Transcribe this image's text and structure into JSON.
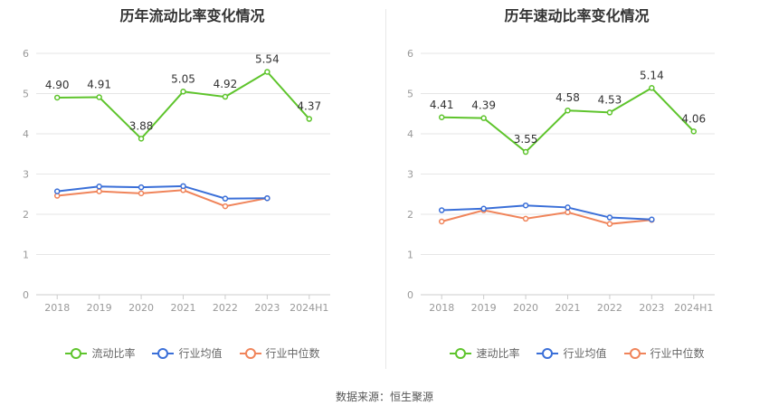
{
  "source_note": "数据来源：恒生聚源",
  "colors": {
    "main": "#5ec42c",
    "avg": "#3a6fd8",
    "median": "#f0845a",
    "grid": "#e6e6e6",
    "axis": "#999999",
    "label": "#333333"
  },
  "chart_data": [
    {
      "type": "line",
      "title": "历年流动比率变化情况",
      "categories": [
        "2018",
        "2019",
        "2020",
        "2021",
        "2022",
        "2023",
        "2024H1"
      ],
      "ylim": [
        0,
        6
      ],
      "yticks": [
        "0",
        "1",
        "2",
        "3",
        "4",
        "5",
        "6"
      ],
      "grid": true,
      "legend_position": "bottom",
      "series": [
        {
          "name": "流动比率",
          "color": "#5ec42c",
          "values": [
            4.9,
            4.91,
            3.88,
            5.05,
            4.92,
            5.54,
            4.37
          ],
          "labels": [
            "4.90",
            "4.91",
            "3.88",
            "5.05",
            "4.92",
            "5.54",
            "4.37"
          ]
        },
        {
          "name": "行业均值",
          "color": "#3a6fd8",
          "values": [
            2.57,
            2.69,
            2.67,
            2.7,
            2.39,
            2.4,
            null
          ]
        },
        {
          "name": "行业中位数",
          "color": "#f0845a",
          "values": [
            2.46,
            2.57,
            2.52,
            2.6,
            2.2,
            2.4,
            null
          ]
        }
      ]
    },
    {
      "type": "line",
      "title": "历年速动比率变化情况",
      "categories": [
        "2018",
        "2019",
        "2020",
        "2021",
        "2022",
        "2023",
        "2024H1"
      ],
      "ylim": [
        0,
        6
      ],
      "yticks": [
        "0",
        "1",
        "2",
        "3",
        "4",
        "5",
        "6"
      ],
      "grid": true,
      "legend_position": "bottom",
      "series": [
        {
          "name": "速动比率",
          "color": "#5ec42c",
          "values": [
            4.41,
            4.39,
            3.55,
            4.58,
            4.53,
            5.14,
            4.06
          ],
          "labels": [
            "4.41",
            "4.39",
            "3.55",
            "4.58",
            "4.53",
            "5.14",
            "4.06"
          ]
        },
        {
          "name": "行业均值",
          "color": "#3a6fd8",
          "values": [
            2.1,
            2.14,
            2.22,
            2.17,
            1.92,
            1.87,
            null
          ]
        },
        {
          "name": "行业中位数",
          "color": "#f0845a",
          "values": [
            1.82,
            2.1,
            1.89,
            2.05,
            1.76,
            1.86,
            null
          ]
        }
      ]
    }
  ]
}
